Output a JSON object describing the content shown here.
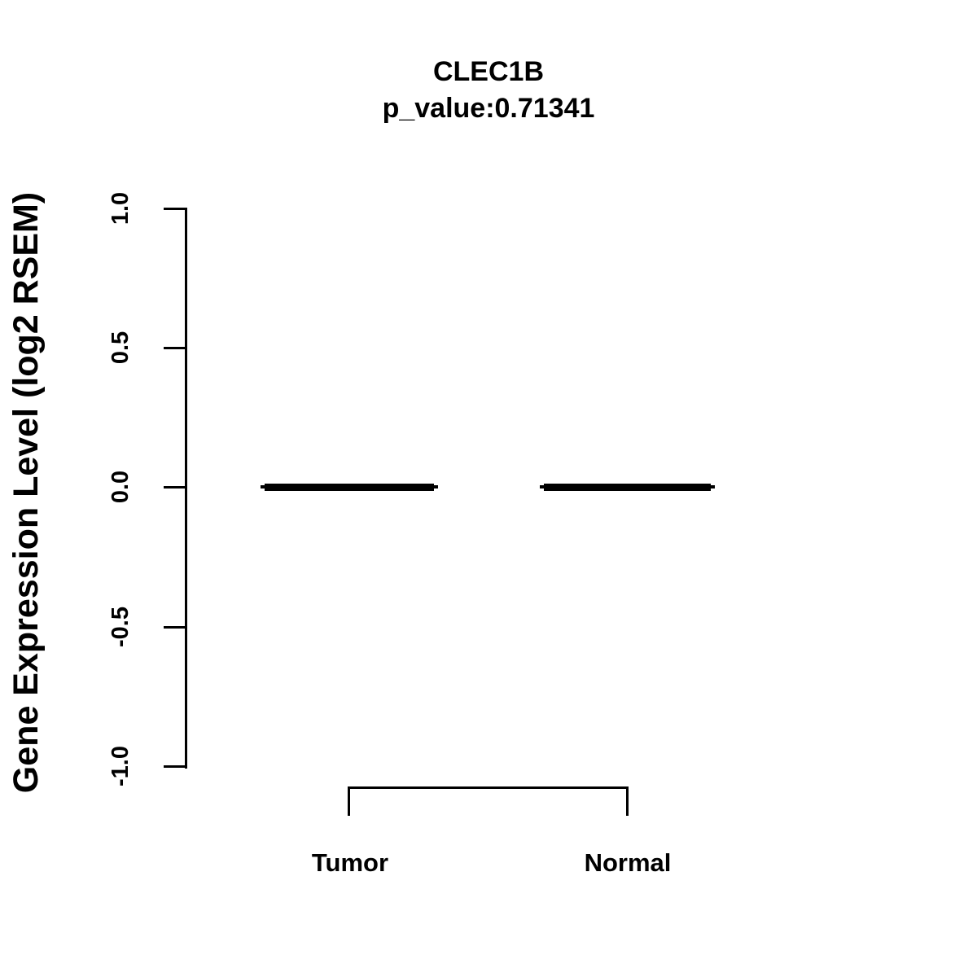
{
  "chart_data": {
    "type": "boxplot",
    "title": "CLEC1B",
    "subtitle": "p_value:0.71341",
    "gene": "CLEC1B",
    "p_value": "0.71341",
    "ylabel": "Gene Expression Level (log2 RSEM)",
    "ylim": [
      -1.0,
      1.0
    ],
    "ytick_values": [
      1.0,
      0.5,
      0.0,
      -0.5,
      -1.0
    ],
    "ytick_labels": [
      "1.0",
      "0.5",
      "0.0",
      "-0.5",
      "-1.0"
    ],
    "categories": [
      "Tumor",
      "Normal"
    ],
    "groups": [
      {
        "label": "Tumor",
        "median": 0.0,
        "q1": 0.0,
        "q3": 0.0,
        "whisker_low": 0.0,
        "whisker_high": 0.0
      },
      {
        "label": "Normal",
        "median": 0.0,
        "q1": 0.0,
        "q3": 0.0,
        "whisker_low": 0.0,
        "whisker_high": 0.0
      }
    ],
    "annotations": {
      "comparison_bracket": [
        "Tumor",
        "Normal"
      ]
    },
    "legend": "none",
    "grid": false,
    "colors": {
      "foreground": "#000000",
      "background": "#ffffff"
    }
  }
}
